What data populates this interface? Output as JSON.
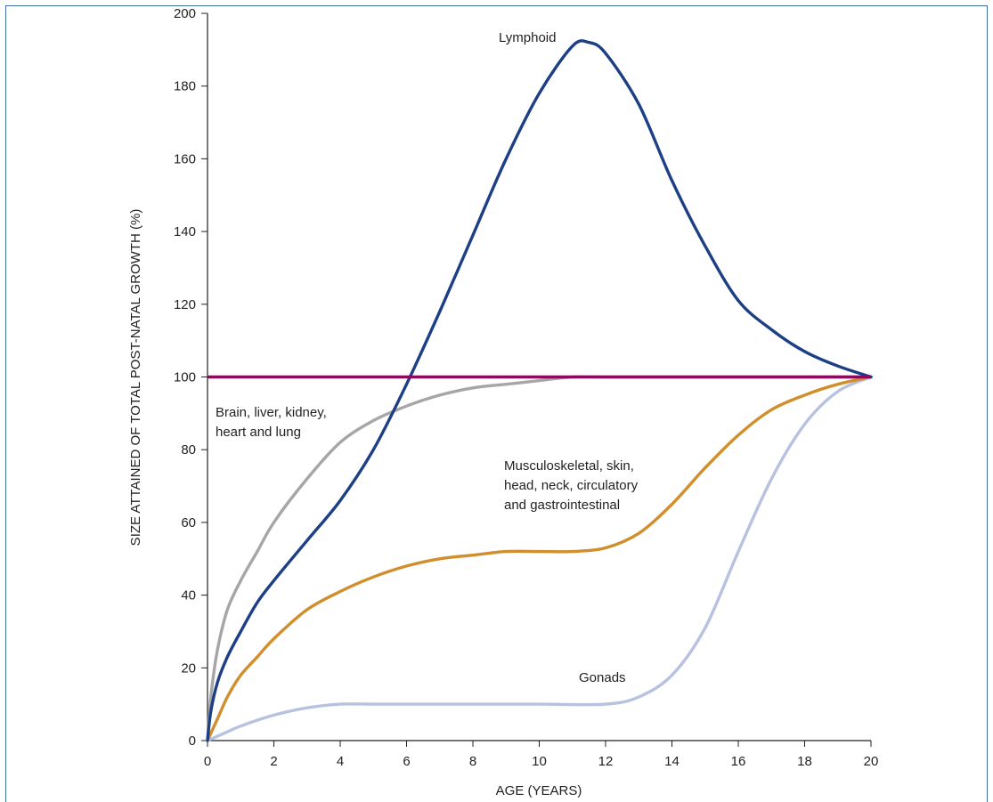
{
  "chart_data": {
    "type": "line",
    "xlabel": "AGE (YEARS)",
    "ylabel": "SIZE ATTAINED OF TOTAL POST-NATAL GROWTH (%)",
    "xlim": [
      0,
      20
    ],
    "ylim": [
      0,
      200
    ],
    "x_ticks": [
      "0",
      "2",
      "4",
      "6",
      "8",
      "10",
      "12",
      "14",
      "16",
      "18",
      "20"
    ],
    "y_ticks": [
      "0",
      "20",
      "40",
      "60",
      "80",
      "100",
      "120",
      "140",
      "160",
      "180",
      "200"
    ],
    "grid": false,
    "reference_line": {
      "y": 100,
      "color": "#8b0a5e"
    },
    "series": [
      {
        "name": "Lymphoid",
        "color": "#1d3f86",
        "x": [
          0,
          0.1,
          0.3,
          0.6,
          1,
          1.5,
          2,
          3,
          4,
          5,
          6,
          7,
          8,
          9,
          10,
          11,
          11.5,
          12,
          13,
          14,
          15,
          16,
          17,
          18,
          19,
          20
        ],
        "y": [
          0,
          8,
          16,
          23,
          30,
          38,
          44,
          55,
          66,
          80,
          98,
          118,
          139,
          160,
          178,
          191,
          192,
          189,
          175,
          154,
          136,
          121,
          113,
          107,
          103,
          100
        ]
      },
      {
        "name": "Brain, liver, kidney, heart and lung",
        "color": "#a6a6a8",
        "x": [
          0,
          0.1,
          0.3,
          0.6,
          1,
          1.5,
          2,
          3,
          4,
          5,
          6,
          7,
          8,
          9,
          10,
          11,
          12,
          14,
          16,
          18,
          20
        ],
        "y": [
          0,
          12,
          25,
          36,
          44,
          52,
          60,
          72,
          82,
          88,
          92,
          95,
          97,
          98,
          99,
          100,
          100,
          100,
          100,
          100,
          100
        ]
      },
      {
        "name": "Musculoskeletal, skin, head, neck, circulatory and gastrointestinal",
        "color": "#d08f2c",
        "x": [
          0,
          0.3,
          0.6,
          1,
          1.5,
          2,
          3,
          4,
          5,
          6,
          7,
          8,
          9,
          10,
          11,
          12,
          13,
          14,
          15,
          16,
          17,
          18,
          19,
          20
        ],
        "y": [
          0,
          6,
          12,
          18,
          23,
          28,
          36,
          41,
          45,
          48,
          50,
          51,
          52,
          52,
          52,
          53,
          57,
          65,
          75,
          84,
          91,
          95,
          98,
          100
        ]
      },
      {
        "name": "Gonads",
        "color": "#b6c2e0",
        "x": [
          0,
          0.5,
          1,
          2,
          3,
          4,
          5,
          6,
          8,
          10,
          12,
          13,
          14,
          15,
          16,
          17,
          18,
          19,
          20
        ],
        "y": [
          0,
          2,
          4,
          7,
          9,
          10,
          10,
          10,
          10,
          10,
          10,
          12,
          18,
          31,
          52,
          72,
          87,
          96,
          100
        ]
      }
    ],
    "annotations": [
      {
        "text": "Lymphoid",
        "series": 0
      },
      {
        "text": "Brain, liver, kidney,",
        "series": 1
      },
      {
        "text": "heart and lung",
        "series": 1
      },
      {
        "text": "Musculoskeletal, skin,",
        "series": 2
      },
      {
        "text": "head, neck, circulatory",
        "series": 2
      },
      {
        "text": "and gastrointestinal",
        "series": 2
      },
      {
        "text": "Gonads",
        "series": 3
      }
    ]
  }
}
